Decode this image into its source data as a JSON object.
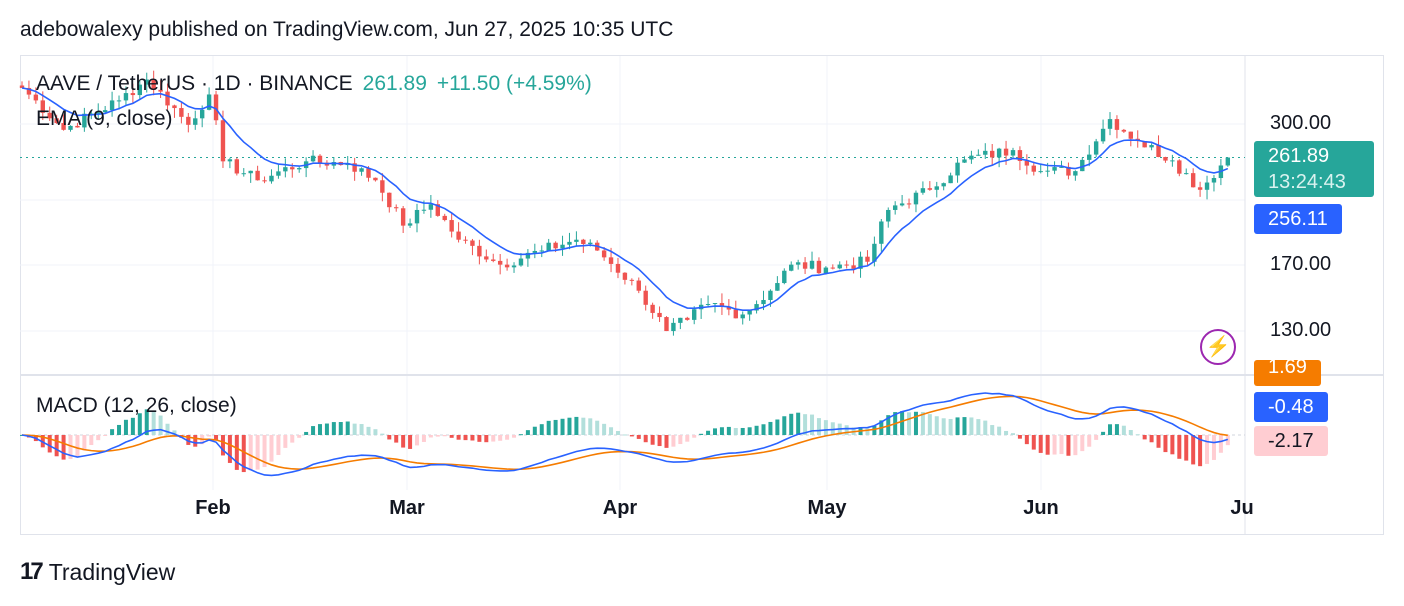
{
  "header": {
    "published": "adebowalexy published on TradingView.com, Jun 27, 2025 10:35 UTC"
  },
  "legend": {
    "symbol": "AAVE / TetherUS · 1D · BINANCE",
    "price": "261.89",
    "change": "+11.50 (+4.59%)",
    "ema": "EMA (9, close)",
    "macd": "MACD (12, 26, close)"
  },
  "axis": {
    "price_ticks": [
      "300.00",
      "170.00",
      "130.00"
    ],
    "last_price": "261.89",
    "countdown": "13:24:43",
    "ema_value": "256.11",
    "macd_signal": "1.69",
    "macd_value": "-0.48",
    "macd_hist": "-2.17",
    "dates": [
      "Feb",
      "Mar",
      "Apr",
      "May",
      "Jun",
      "Ju"
    ]
  },
  "colors": {
    "up": "#26a69a",
    "down": "#ef5350",
    "ema": "#2962ff",
    "signal": "#f57c00",
    "last": "#26a69a",
    "emaTag": "#2962ff",
    "histTag": "#ffcdd2"
  },
  "footer": {
    "brand": "TradingView"
  },
  "chart_data": {
    "type": "candlestick",
    "title": "AAVE / TetherUS · 1D · BINANCE",
    "scale": "log",
    "ylim": [
      110,
      400
    ],
    "start_date": "2025-01-04",
    "keypoints": [
      [
        0,
        347
      ],
      [
        6,
        293
      ],
      [
        14,
        330
      ],
      [
        18,
        359
      ],
      [
        24,
        299
      ],
      [
        27,
        338
      ],
      [
        29,
        258
      ],
      [
        34,
        239
      ],
      [
        41,
        258
      ],
      [
        47,
        256
      ],
      [
        51,
        239
      ],
      [
        55,
        199
      ],
      [
        59,
        217
      ],
      [
        63,
        188
      ],
      [
        69,
        170
      ],
      [
        75,
        180
      ],
      [
        80,
        188
      ],
      [
        83,
        180
      ],
      [
        89,
        153
      ],
      [
        93,
        130
      ],
      [
        96,
        136
      ],
      [
        99,
        145
      ],
      [
        104,
        139
      ],
      [
        108,
        153
      ],
      [
        111,
        170
      ],
      [
        116,
        168
      ],
      [
        122,
        172
      ],
      [
        125,
        212
      ],
      [
        131,
        230
      ],
      [
        136,
        260
      ],
      [
        143,
        270
      ],
      [
        147,
        248
      ],
      [
        152,
        248
      ],
      [
        157,
        306
      ],
      [
        161,
        280
      ],
      [
        166,
        259
      ],
      [
        170,
        230
      ],
      [
        174,
        262
      ]
    ],
    "indicators": {
      "ema": 9,
      "macd": [
        12,
        26
      ]
    }
  }
}
